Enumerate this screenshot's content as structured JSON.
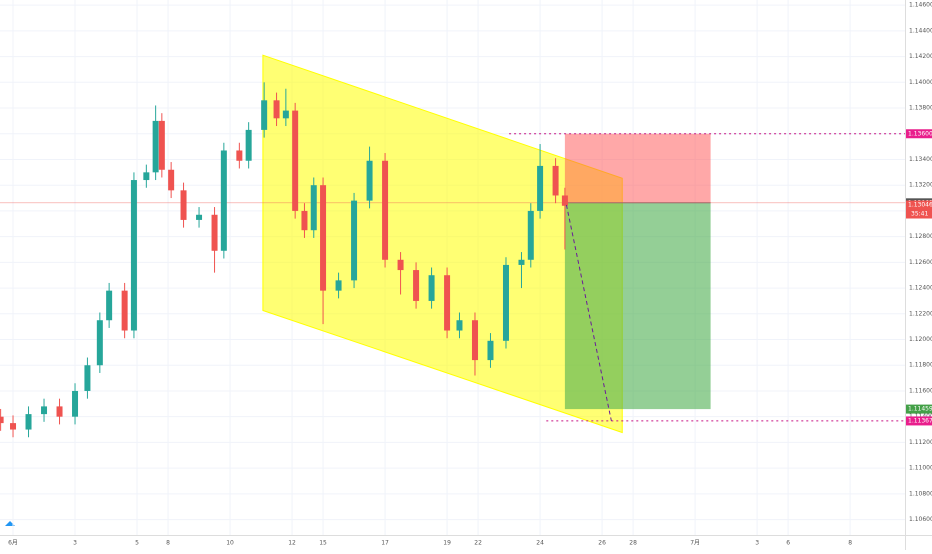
{
  "chart_data": {
    "type": "candlestick",
    "xlim": [
      -0.42,
      28.77
    ],
    "ylim": [
      1.1048,
      1.1464
    ],
    "grid": true,
    "xticks": [
      {
        "value": 0,
        "label": "6月"
      },
      {
        "value": 2,
        "label": "3"
      },
      {
        "value": 4,
        "label": "5"
      },
      {
        "value": 5,
        "label": "8"
      },
      {
        "value": 7,
        "label": "10"
      },
      {
        "value": 9,
        "label": "12"
      },
      {
        "value": 10,
        "label": "15"
      },
      {
        "value": 12,
        "label": "17"
      },
      {
        "value": 14,
        "label": "19"
      },
      {
        "value": 15,
        "label": "22"
      },
      {
        "value": 17,
        "label": "24"
      },
      {
        "value": 19,
        "label": "26"
      },
      {
        "value": 20,
        "label": "28"
      },
      {
        "value": 22,
        "label": "7月"
      },
      {
        "value": 24,
        "label": "3"
      },
      {
        "value": 25,
        "label": "6"
      },
      {
        "value": 27,
        "label": "8"
      }
    ],
    "yticks": [
      {
        "value": 1.106,
        "label": "1.10600"
      },
      {
        "value": 1.108,
        "label": "1.10800"
      },
      {
        "value": 1.11,
        "label": "1.11000"
      },
      {
        "value": 1.112,
        "label": "1.11200"
      },
      {
        "value": 1.114,
        "label": "1.11400"
      },
      {
        "value": 1.116,
        "label": "1.11600"
      },
      {
        "value": 1.118,
        "label": "1.11800"
      },
      {
        "value": 1.12,
        "label": "1.12000"
      },
      {
        "value": 1.122,
        "label": "1.12200"
      },
      {
        "value": 1.124,
        "label": "1.12400"
      },
      {
        "value": 1.126,
        "label": "1.12600"
      },
      {
        "value": 1.128,
        "label": "1.12800"
      },
      {
        "value": 1.13,
        "label": "1.13000"
      },
      {
        "value": 1.132,
        "label": "1.13200"
      },
      {
        "value": 1.134,
        "label": "1.13400"
      },
      {
        "value": 1.136,
        "label": "1.13600"
      },
      {
        "value": 1.138,
        "label": "1.13800"
      },
      {
        "value": 1.14,
        "label": "1.14000"
      },
      {
        "value": 1.142,
        "label": "1.14200"
      },
      {
        "value": 1.144,
        "label": "1.14400"
      },
      {
        "value": 1.146,
        "label": "1.14600"
      }
    ],
    "up_color": "#26a69a",
    "down_color": "#ef5350",
    "candles": {
      "x": [
        -0.4,
        0,
        0.5,
        1,
        1.5,
        2,
        2.4,
        2.8,
        3.1,
        3.6,
        3.9,
        4.3,
        4.6,
        4.8,
        5.1,
        5.5,
        6,
        6.5,
        6.8,
        7.3,
        7.6,
        8.1,
        8.5,
        8.8,
        9.1,
        9.4,
        9.7,
        10,
        10.5,
        11,
        11.5,
        12,
        12.5,
        13,
        13.5,
        14,
        14.4,
        14.9,
        15.4,
        15.9,
        16.4,
        16.7,
        17,
        17.5,
        17.8
      ],
      "open": [
        1.114,
        1.1135,
        1.113,
        1.1142,
        1.1148,
        1.114,
        1.116,
        1.118,
        1.1215,
        1.1238,
        1.1207,
        1.1324,
        1.133,
        1.137,
        1.1332,
        1.1316,
        1.1293,
        1.1297,
        1.1269,
        1.1347,
        1.1339,
        1.1363,
        1.1386,
        1.1372,
        1.1378,
        1.13,
        1.1285,
        1.132,
        1.1238,
        1.1246,
        1.1308,
        1.1339,
        1.1262,
        1.1254,
        1.123,
        1.125,
        1.1207,
        1.1215,
        1.1184,
        1.1199,
        1.1258,
        1.1262,
        1.13,
        1.1335,
        1.1312
      ],
      "high": [
        1.1146,
        1.1141,
        1.1148,
        1.1154,
        1.1154,
        1.1166,
        1.1186,
        1.1221,
        1.1244,
        1.1244,
        1.133,
        1.1336,
        1.1382,
        1.1376,
        1.1338,
        1.1322,
        1.1303,
        1.1303,
        1.1353,
        1.1353,
        1.1369,
        1.14,
        1.1392,
        1.1395,
        1.1384,
        1.1306,
        1.1326,
        1.1326,
        1.1252,
        1.1314,
        1.135,
        1.1345,
        1.1268,
        1.126,
        1.1256,
        1.1256,
        1.1221,
        1.1221,
        1.1205,
        1.1264,
        1.1268,
        1.1306,
        1.1352,
        1.1341,
        1.1318
      ],
      "low": [
        1.1129,
        1.1124,
        1.1124,
        1.1136,
        1.1134,
        1.1134,
        1.1154,
        1.1174,
        1.1209,
        1.1201,
        1.1201,
        1.1318,
        1.1324,
        1.1326,
        1.131,
        1.1287,
        1.1287,
        1.1252,
        1.1263,
        1.1333,
        1.1333,
        1.1357,
        1.1366,
        1.1366,
        1.1294,
        1.1279,
        1.1279,
        1.1212,
        1.1232,
        1.124,
        1.1302,
        1.1256,
        1.1235,
        1.1224,
        1.1224,
        1.1201,
        1.1201,
        1.1172,
        1.1178,
        1.1193,
        1.124,
        1.1256,
        1.1294,
        1.1306,
        1.127
      ],
      "close": [
        1.1135,
        1.113,
        1.1142,
        1.1148,
        1.114,
        1.116,
        1.118,
        1.1215,
        1.1238,
        1.1207,
        1.1324,
        1.133,
        1.137,
        1.1332,
        1.1316,
        1.1293,
        1.1297,
        1.1269,
        1.1347,
        1.1339,
        1.1363,
        1.1386,
        1.1372,
        1.1378,
        1.13,
        1.1285,
        1.132,
        1.1238,
        1.1246,
        1.1308,
        1.1339,
        1.1262,
        1.1254,
        1.123,
        1.125,
        1.1207,
        1.1215,
        1.1184,
        1.1199,
        1.1258,
        1.1262,
        1.13,
        1.1335,
        1.1312,
        1.1304
      ]
    },
    "channel": {
      "x": [
        8.06,
        19.65
      ],
      "upper": [
        1.14211,
        1.13254
      ],
      "lower": [
        1.12226,
        1.11277
      ],
      "color": "#ffff00"
    },
    "position": {
      "x": [
        17.8,
        22.5
      ],
      "stop": 1.136,
      "entry": 1.13063,
      "target": 1.11459,
      "stop_color": "#ff5252",
      "target_color": "#4caf50"
    },
    "levels": [
      {
        "value": 1.136,
        "from": 16
      },
      {
        "value": 1.11367,
        "from": 17.2
      }
    ],
    "projection": {
      "x": [
        17.85,
        19.3
      ],
      "y": [
        1.13046,
        1.11367
      ]
    },
    "last_price": 1.13063,
    "price_labels": [
      {
        "value": 1.136,
        "label": "1.13600",
        "color": "#e91e8c"
      },
      {
        "value": 1.13063,
        "label": "1.13063",
        "color": "#555555"
      },
      {
        "value": 1.13046,
        "label": "1.13046",
        "color": "#ef5350"
      },
      {
        "value": 1.11459,
        "label": "1.11459",
        "color": "#43a047"
      },
      {
        "value": 1.11367,
        "label": "1.11367",
        "color": "#e91e8c"
      }
    ],
    "countdown": "35:41"
  }
}
